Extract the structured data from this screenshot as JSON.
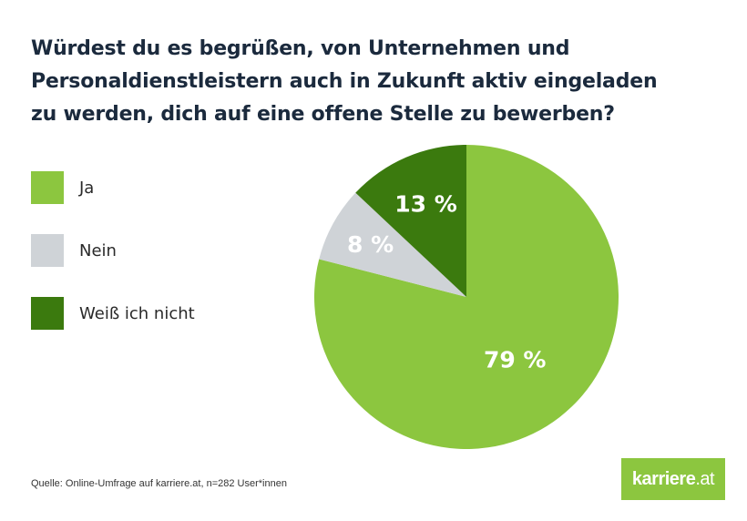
{
  "title": "Würdest du es begrüßen, von Unternehmen und Personaldienstleistern auch in Zukunft aktiv eingeladen zu werden, dich auf eine offene Stelle zu bewerben?",
  "source": "Quelle: Online-Umfrage auf karriere.at, n=282 User*innen",
  "logo": {
    "brand": "karriere",
    "domain": ".at"
  },
  "colors": {
    "ja": "#8cc63f",
    "nein": "#cfd3d7",
    "weiss_nicht": "#3b7a0e",
    "title": "#1b2a3d",
    "slice_text": "#ffffff"
  },
  "chart_data": {
    "type": "pie",
    "title": "Würdest du es begrüßen, von Unternehmen und Personaldienstleistern auch in Zukunft aktiv eingeladen zu werden, dich auf eine offene Stelle zu bewerben?",
    "start": "12 o'clock, clockwise",
    "legend_position": "left",
    "slices": [
      {
        "label": "Ja",
        "value": 79,
        "display": "79 %",
        "color": "#8cc63f"
      },
      {
        "label": "Nein",
        "value": 8,
        "display": "8 %",
        "color": "#cfd3d7"
      },
      {
        "label": "Weiß ich nicht",
        "value": 13,
        "display": "13 %",
        "color": "#3b7a0e"
      }
    ]
  }
}
